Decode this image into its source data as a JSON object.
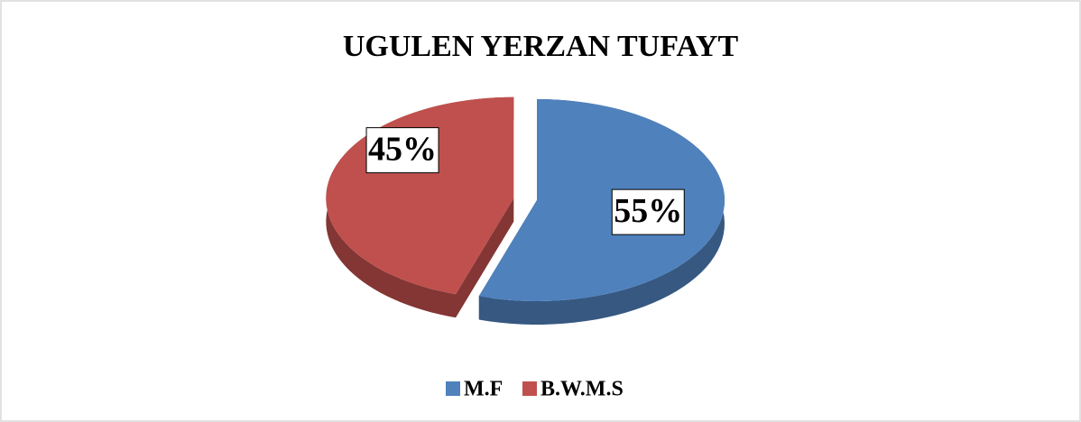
{
  "chart_data": {
    "type": "pie",
    "title": "UGULEN YERZAN TUFAYT",
    "categories": [
      "M.F",
      "B.W.M.S"
    ],
    "values": [
      55,
      45
    ],
    "value_labels": [
      "55%",
      "45%"
    ],
    "colors": [
      "#4f81bd",
      "#c0504d"
    ],
    "legend": "bottom"
  }
}
